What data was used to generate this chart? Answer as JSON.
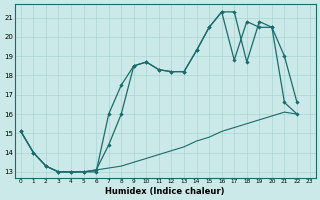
{
  "xlabel": "Humidex (Indice chaleur)",
  "bg_color": "#cce9e9",
  "line_color": "#1a6b6b",
  "grid_color": "#aad4d4",
  "xlim": [
    -0.5,
    23.5
  ],
  "ylim": [
    12.7,
    21.7
  ],
  "yticks": [
    13,
    14,
    15,
    16,
    17,
    18,
    19,
    20,
    21
  ],
  "xticks": [
    0,
    1,
    2,
    3,
    4,
    5,
    6,
    7,
    8,
    9,
    10,
    11,
    12,
    13,
    14,
    15,
    16,
    17,
    18,
    19,
    20,
    21,
    22,
    23
  ],
  "line1_x": [
    0,
    1,
    2,
    3,
    4,
    5,
    6,
    7,
    8,
    9,
    10,
    11,
    12,
    13,
    14,
    15,
    16,
    17,
    18,
    19,
    20,
    21,
    22
  ],
  "line1_y": [
    15.1,
    14.0,
    13.3,
    13.0,
    13.0,
    13.0,
    13.1,
    13.2,
    13.3,
    13.5,
    13.7,
    13.9,
    14.1,
    14.3,
    14.6,
    14.8,
    15.1,
    15.3,
    15.5,
    15.7,
    15.9,
    16.1,
    16.0
  ],
  "line2_x": [
    0,
    1,
    2,
    3,
    4,
    5,
    6,
    7,
    8,
    9,
    10,
    11,
    12,
    13,
    14,
    15,
    16,
    17,
    18,
    19,
    20,
    21,
    22
  ],
  "line2_y": [
    15.1,
    14.0,
    13.3,
    13.0,
    13.0,
    13.0,
    13.0,
    16.0,
    17.5,
    18.5,
    18.7,
    18.3,
    18.2,
    18.2,
    19.3,
    20.5,
    21.3,
    21.3,
    18.7,
    20.8,
    20.5,
    19.0,
    16.6
  ],
  "line3_x": [
    0,
    1,
    2,
    3,
    4,
    5,
    6,
    7,
    8,
    9,
    10,
    11,
    12,
    13,
    14,
    15,
    16,
    17,
    18,
    19,
    20,
    21,
    22
  ],
  "line3_y": [
    15.1,
    14.0,
    13.3,
    13.0,
    13.0,
    13.0,
    13.1,
    14.4,
    16.0,
    18.5,
    18.7,
    18.3,
    18.2,
    18.2,
    19.3,
    20.5,
    21.3,
    18.8,
    20.8,
    20.5,
    20.5,
    16.6,
    16.0
  ]
}
